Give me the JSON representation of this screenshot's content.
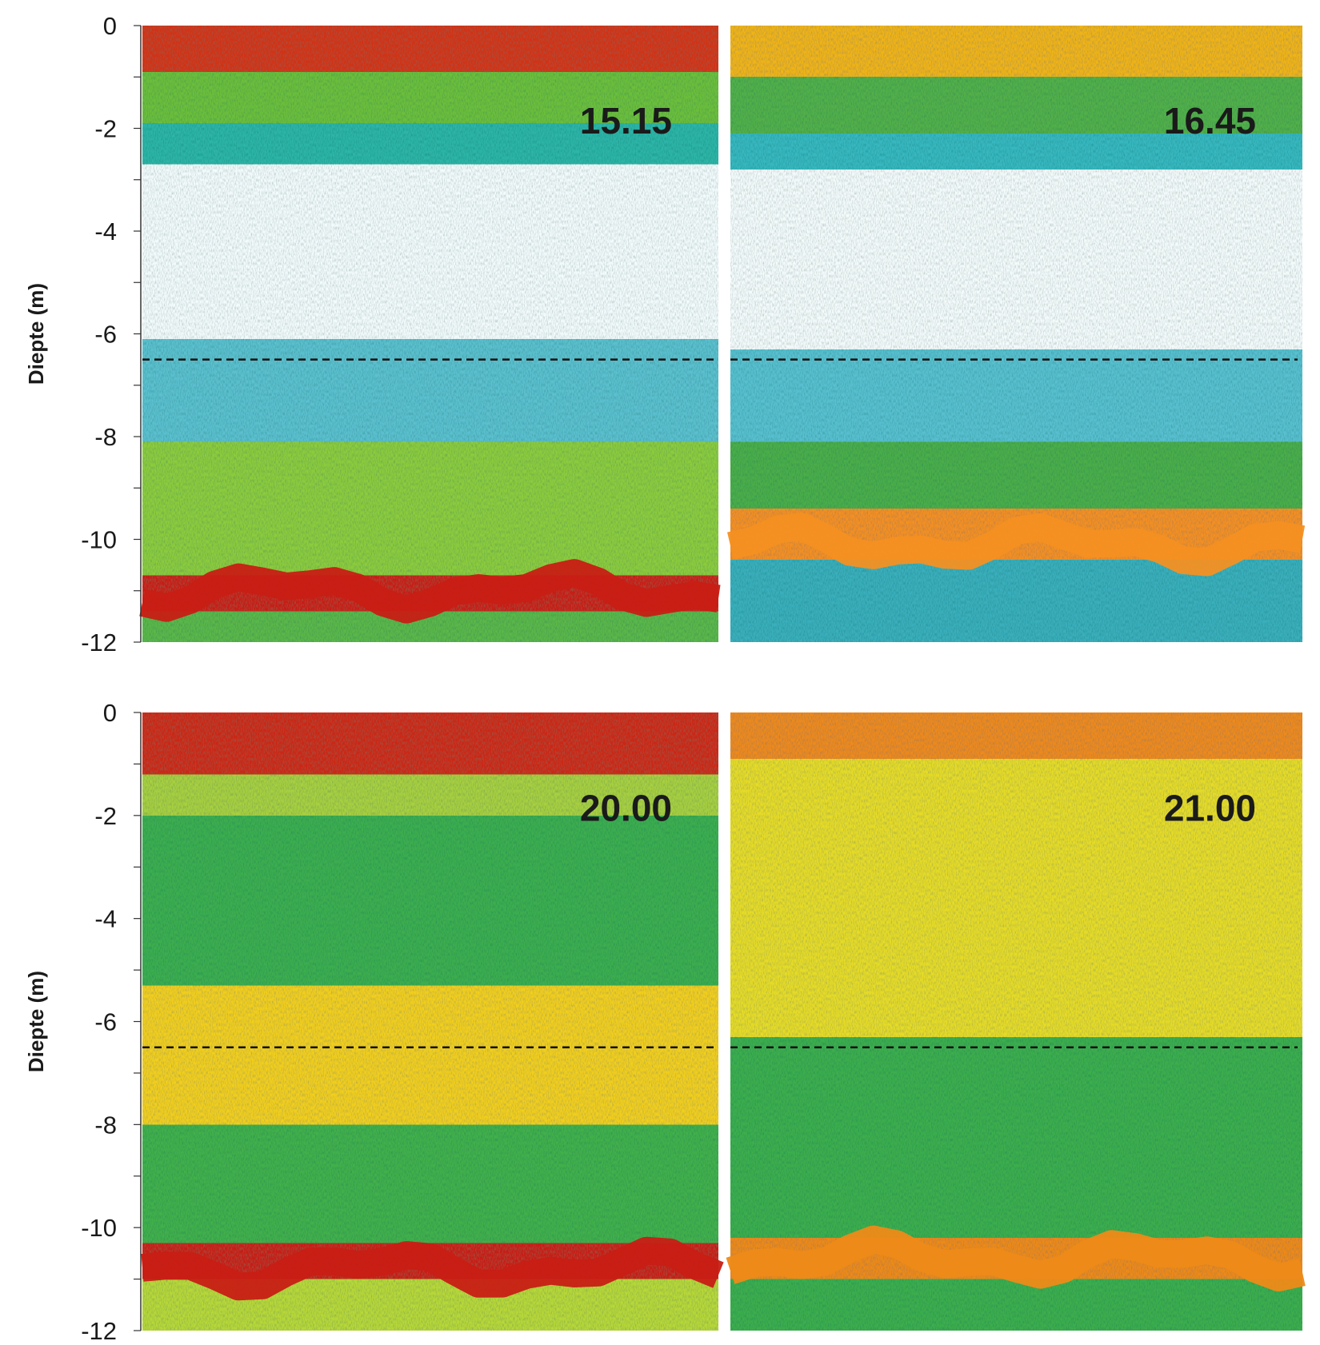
{
  "chart_data": {
    "type": "heatmap",
    "figure": "echogram panels, depth (m) on the vertical axis",
    "ylabel": "Diepte (m)",
    "ylim": [
      -12,
      0
    ],
    "yticks": [
      0,
      -2,
      -4,
      -6,
      -8,
      -10,
      -12
    ],
    "ytick_labels": [
      "0",
      "-2",
      "-4",
      "-6",
      "-8",
      "-10",
      "-12"
    ],
    "reference_line": {
      "depth": -6.5,
      "style": "dashed"
    },
    "grid": false,
    "panels": [
      {
        "time_label": "15.15",
        "row": 0,
        "col": 0,
        "show_yaxis": true,
        "bottom_depth": -11,
        "bottom_color": "#c81e14",
        "layers": [
          {
            "from": 0,
            "to": -0.9,
            "color": "#d23218"
          },
          {
            "from": -0.9,
            "to": -1.9,
            "color": "#6cbf3a"
          },
          {
            "from": -1.9,
            "to": -2.7,
            "color": "#2fb5a8"
          },
          {
            "from": -2.7,
            "to": -6.1,
            "color": "#f3fbfd"
          },
          {
            "from": -6.1,
            "to": -8.1,
            "color": "#5cc0cf"
          },
          {
            "from": -8.1,
            "to": -10.7,
            "color": "#8ccc3c"
          },
          {
            "from": -10.7,
            "to": -11.4,
            "color": "#c81e14"
          },
          {
            "from": -11.4,
            "to": -12,
            "color": "#5cb84a"
          }
        ]
      },
      {
        "time_label": "16.45",
        "row": 0,
        "col": 1,
        "show_yaxis": false,
        "bottom_depth": -10.1,
        "bottom_color": "#f49022",
        "layers": [
          {
            "from": 0,
            "to": -1.0,
            "color": "#f0b414"
          },
          {
            "from": -1.0,
            "to": -2.1,
            "color": "#52b04a"
          },
          {
            "from": -2.1,
            "to": -2.8,
            "color": "#38b8c0"
          },
          {
            "from": -2.8,
            "to": -6.3,
            "color": "#f4fbfc"
          },
          {
            "from": -6.3,
            "to": -8.1,
            "color": "#58c0d0"
          },
          {
            "from": -8.1,
            "to": -9.4,
            "color": "#4cae48"
          },
          {
            "from": -9.4,
            "to": -10.4,
            "color": "#f49022"
          },
          {
            "from": -10.4,
            "to": -12,
            "color": "#3aafbc"
          }
        ]
      },
      {
        "time_label": "20.00",
        "row": 1,
        "col": 0,
        "show_yaxis": true,
        "bottom_depth": -10.8,
        "bottom_color": "#c81e14",
        "layers": [
          {
            "from": 0,
            "to": -1.2,
            "color": "#cc2818"
          },
          {
            "from": -1.2,
            "to": -2.0,
            "color": "#a8d040"
          },
          {
            "from": -2.0,
            "to": -5.3,
            "color": "#3cae50"
          },
          {
            "from": -5.3,
            "to": -8.0,
            "color": "#f2cf1a"
          },
          {
            "from": -8.0,
            "to": -10.3,
            "color": "#42b04c"
          },
          {
            "from": -10.3,
            "to": -11.0,
            "color": "#c81e14"
          },
          {
            "from": -11.0,
            "to": -12,
            "color": "#b8d838"
          }
        ]
      },
      {
        "time_label": "21.00",
        "row": 1,
        "col": 1,
        "show_yaxis": false,
        "bottom_depth": -10.6,
        "bottom_color": "#ee8a18",
        "layers": [
          {
            "from": 0,
            "to": -0.9,
            "color": "#ee8a1a"
          },
          {
            "from": -0.9,
            "to": -6.3,
            "color": "#e6dc28"
          },
          {
            "from": -6.3,
            "to": -10.2,
            "color": "#3cae4e"
          },
          {
            "from": -10.2,
            "to": -11.0,
            "color": "#ee8a18"
          },
          {
            "from": -11.0,
            "to": -12,
            "color": "#3cae4e"
          }
        ]
      }
    ]
  },
  "colors": {
    "background": "#ffffff",
    "axis": "#333333",
    "text": "#1a1a1a",
    "reference_line": "#111111"
  }
}
